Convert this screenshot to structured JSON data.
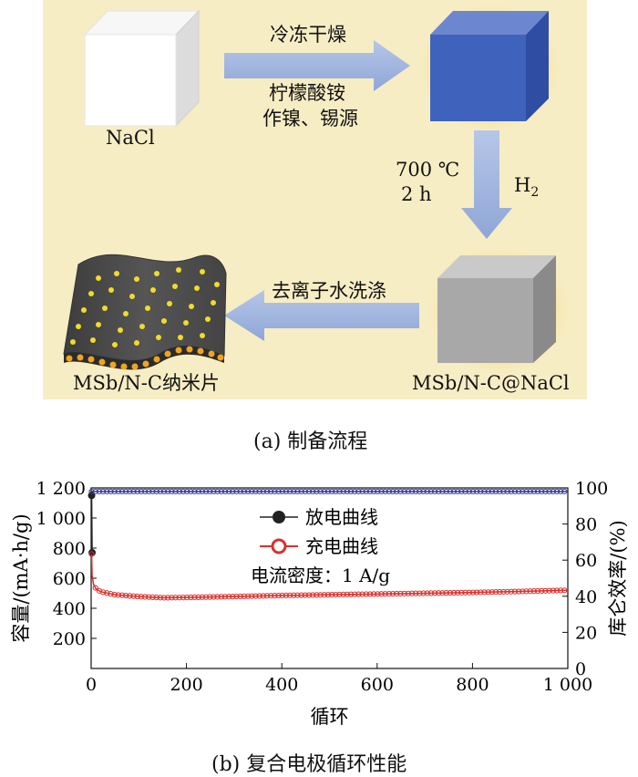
{
  "panel_a": {
    "step1_top": "冷冻干燥",
    "step1_bottom_line1": "柠檬酸铵",
    "step1_bottom_line2": "作镍、锡源",
    "nacl_label": "NaCl",
    "temp_label": "700 ℃",
    "time_label": "2 h",
    "gas_label": "H",
    "gas_sub": "2",
    "wash_label": "去离子水洗涤",
    "composite_label": "MSb/N-C@NaCl",
    "product_label": "MSb/N-C纳米片",
    "caption": "(a) 制备流程"
  },
  "panel_b": {
    "caption": "(b) 复合电极循环性能",
    "legend_discharge": "放电曲线",
    "legend_charge": "充电曲线",
    "condition": "电流密度：1 A/g"
  },
  "chart_data": {
    "type": "line",
    "xlabel": "循环",
    "ylabel_left": "容量/(mA·h/g)",
    "ylabel_right": "库仑效率/(%)",
    "xlim": [
      0,
      1000
    ],
    "ylim_left": [
      0,
      1200
    ],
    "ylim_right": [
      0,
      100
    ],
    "x_ticks": [
      "0",
      "200",
      "400",
      "600",
      "800",
      "1 000"
    ],
    "y_left_ticks": [
      "200",
      "400",
      "600",
      "800",
      "1 000",
      "1 200"
    ],
    "y_right_ticks": [
      "0",
      "20",
      "40",
      "60",
      "80",
      "100"
    ],
    "series": [
      {
        "name": "放电曲线",
        "axis": "left",
        "color": "#222222",
        "x": [
          1,
          2
        ],
        "y": [
          1150,
          770
        ]
      },
      {
        "name": "充电曲线",
        "axis": "left",
        "color": "#d9302c",
        "x": [
          1,
          2,
          5,
          10,
          20,
          50,
          100,
          150,
          200,
          300,
          400,
          500,
          600,
          700,
          800,
          900,
          1000
        ],
        "y": [
          760,
          620,
          560,
          530,
          510,
          490,
          478,
          470,
          472,
          478,
          485,
          490,
          495,
          500,
          505,
          512,
          520
        ]
      },
      {
        "name": "库仑效率",
        "axis": "right",
        "color": "#3a3aa0",
        "x": [
          1,
          10,
          100,
          200,
          300,
          400,
          500,
          600,
          700,
          800,
          900,
          1000
        ],
        "y": [
          98,
          98,
          98,
          98,
          98,
          98,
          98,
          98,
          98,
          98,
          98,
          98
        ]
      }
    ]
  }
}
